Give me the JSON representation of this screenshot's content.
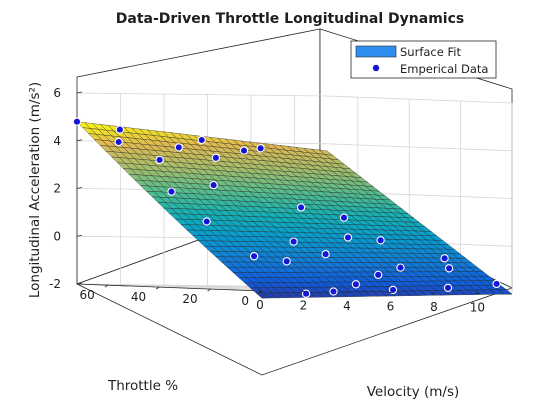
{
  "chart_data": {
    "type": "surface",
    "title": "Data-Driven Throttle Longitudinal Dynamics",
    "xlabel": "Velocity (m/s)",
    "ylabel": "Throttle %",
    "zlabel": "Longitudinal Acceleration (m/s²)",
    "xlim": [
      0,
      11.5
    ],
    "ylim": [
      0,
      72
    ],
    "zlim": [
      -2,
      6
    ],
    "xticks": [
      "0",
      "2",
      "4",
      "6",
      "8",
      "10"
    ],
    "yticks": [
      "0",
      "20",
      "40",
      "60"
    ],
    "zticks": [
      "-2",
      "0",
      "2",
      "4",
      "6"
    ],
    "grid": true,
    "legend_position": "top-right",
    "colormap": "parula",
    "series": [
      {
        "name": "Surface Fit",
        "kind": "surface",
        "color": "#2f8ff0",
        "z_corners": {
          "v0_t0": -2.3,
          "v11.5_t0": -2.0,
          "v0_t72": 4.8,
          "v11.5_t72": 3.7
        }
      },
      {
        "name": "Emperical Data",
        "kind": "scatter",
        "color": "#1515d8",
        "points": [
          {
            "velocity": 0.0,
            "throttle": 72,
            "accel": 4.8
          },
          {
            "velocity": 0.5,
            "throttle": 60,
            "accel": 4.0
          },
          {
            "velocity": 1.5,
            "throttle": 68,
            "accel": 4.5
          },
          {
            "velocity": 1.2,
            "throttle": 50,
            "accel": 3.3
          },
          {
            "velocity": 0.8,
            "throttle": 42,
            "accel": 2.0
          },
          {
            "velocity": 2.5,
            "throttle": 40,
            "accel": 2.3
          },
          {
            "velocity": 1.0,
            "throttle": 30,
            "accel": 0.8
          },
          {
            "velocity": 3.5,
            "throttle": 62,
            "accel": 3.8
          },
          {
            "velocity": 4.5,
            "throttle": 56,
            "accel": 3.4
          },
          {
            "velocity": 5.5,
            "throttle": 70,
            "accel": 4.1
          },
          {
            "velocity": 6.5,
            "throttle": 62,
            "accel": 3.7
          },
          {
            "velocity": 7.5,
            "throttle": 64,
            "accel": 3.8
          },
          {
            "velocity": 2.0,
            "throttle": 20,
            "accel": -0.6
          },
          {
            "velocity": 3.5,
            "throttle": 20,
            "accel": -0.8
          },
          {
            "velocity": 5.0,
            "throttle": 30,
            "accel": 0.0
          },
          {
            "velocity": 6.0,
            "throttle": 26,
            "accel": -0.5
          },
          {
            "velocity": 7.0,
            "throttle": 44,
            "accel": 1.4
          },
          {
            "velocity": 7.5,
            "throttle": 30,
            "accel": 0.2
          },
          {
            "velocity": 8.5,
            "throttle": 40,
            "accel": 1.0
          },
          {
            "velocity": 9.0,
            "throttle": 30,
            "accel": 0.1
          },
          {
            "velocity": 5.5,
            "throttle": 10,
            "accel": -1.7
          },
          {
            "velocity": 7.0,
            "throttle": 14,
            "accel": -1.3
          },
          {
            "velocity": 8.5,
            "throttle": 18,
            "accel": -1.0
          },
          {
            "velocity": 9.5,
            "throttle": 8,
            "accel": -1.8
          },
          {
            "velocity": 10.5,
            "throttle": 16,
            "accel": -1.0
          },
          {
            "velocity": 11.0,
            "throttle": 22,
            "accel": -0.6
          },
          {
            "velocity": 11.5,
            "throttle": 6,
            "accel": -1.6
          },
          {
            "velocity": 2.5,
            "throttle": 4,
            "accel": -2.1
          },
          {
            "velocity": 4.0,
            "throttle": 6,
            "accel": -2.0
          },
          {
            "velocity": 6.5,
            "throttle": 4,
            "accel": -1.9
          }
        ]
      }
    ]
  }
}
